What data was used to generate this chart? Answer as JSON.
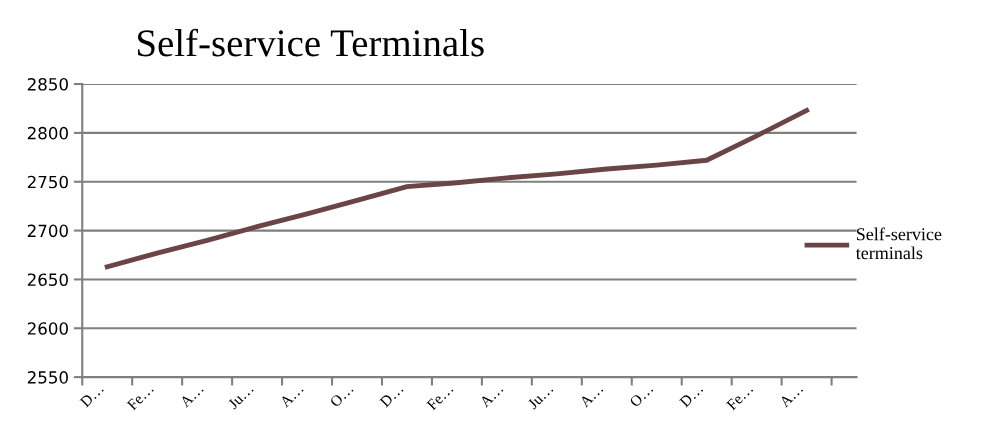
{
  "chart_data": {
    "type": "line",
    "title": "Self-service Terminals",
    "categories": [
      "D…",
      "Fe…",
      "A…",
      "Ju…",
      "A…",
      "O…",
      "D…",
      "Fe…",
      "A…",
      "Ju…",
      "A…",
      "O…",
      "D…",
      "Fe…",
      "A…"
    ],
    "series": [
      {
        "name": "Self-service terminals",
        "color": "#6b4545",
        "values": [
          2663,
          2677,
          2690,
          2704,
          2717,
          2731,
          2745,
          2749,
          2754,
          2758,
          2763,
          2767,
          2772,
          2797,
          2823
        ]
      }
    ],
    "ylim": [
      2550,
      2850
    ],
    "yticks": [
      2550,
      2600,
      2650,
      2700,
      2750,
      2800,
      2850
    ],
    "grid": "y",
    "legend": "right",
    "marker": "none",
    "line_style": "solid"
  }
}
